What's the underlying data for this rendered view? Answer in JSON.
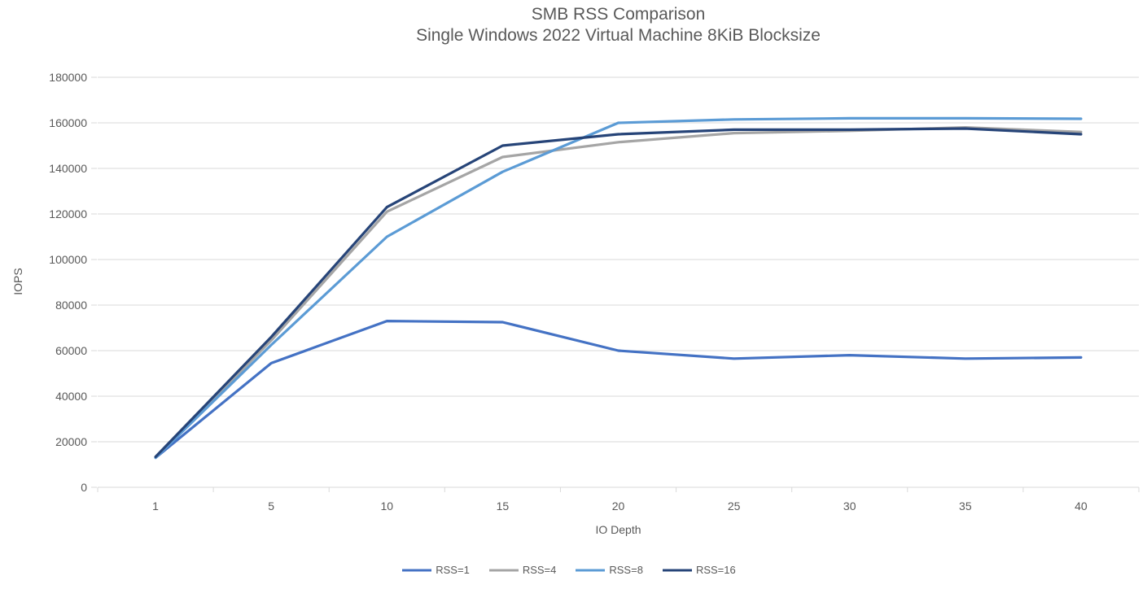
{
  "chart_data": {
    "type": "line",
    "title": "SMB RSS Comparison",
    "subtitle": "Single Windows 2022 Virtual Machine 8KiB Blocksize",
    "xlabel": "IO Depth",
    "ylabel": "IOPS",
    "x_axis_type": "category",
    "x": [
      1,
      5,
      10,
      15,
      20,
      25,
      30,
      35,
      40
    ],
    "ylim": [
      0,
      180000
    ],
    "ytick_step": 20000,
    "grid": "horizontal",
    "legend_position": "bottom",
    "series": [
      {
        "name": "RSS=1",
        "color": "#4472C4",
        "values": [
          13000,
          54500,
          73000,
          72500,
          60000,
          56500,
          58000,
          56500,
          57000
        ]
      },
      {
        "name": "RSS=4",
        "color": "#A5A5A5",
        "values": [
          13100,
          64500,
          121000,
          145000,
          151500,
          155500,
          156500,
          158000,
          156000
        ]
      },
      {
        "name": "RSS=8",
        "color": "#5B9BD5",
        "values": [
          13000,
          62500,
          110000,
          138500,
          160000,
          161500,
          162000,
          162000,
          161800
        ]
      },
      {
        "name": "RSS=16",
        "color": "#264478",
        "values": [
          13400,
          66000,
          123000,
          150000,
          155000,
          157000,
          157000,
          157500,
          155000
        ]
      }
    ],
    "style": {
      "text_color": "#595959",
      "grid_color": "#D9D9D9"
    }
  }
}
